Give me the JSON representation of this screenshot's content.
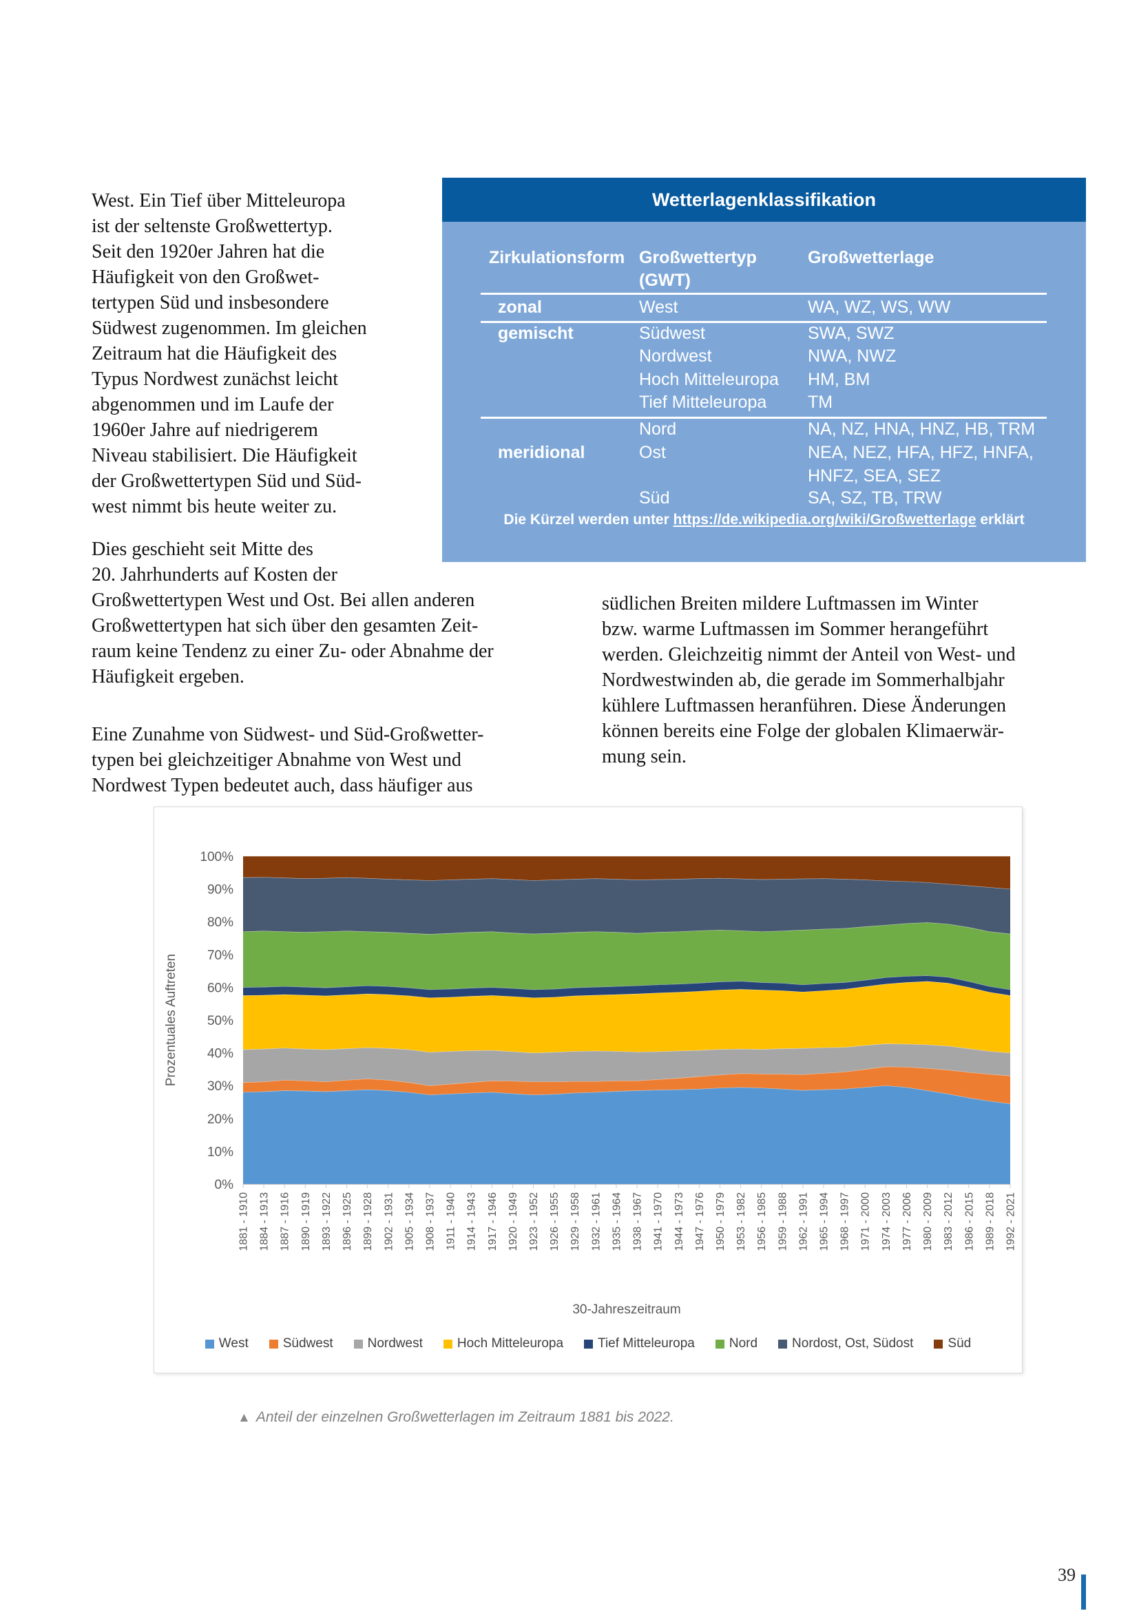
{
  "page": {
    "number": "39"
  },
  "article": {
    "para1_lines": [
      "West. Ein Tief über Mitteleuropa",
      "ist der seltenste Großwettertyp.",
      "Seit den 1920er Jahren hat die",
      "Häufigkeit von den Großwet-",
      "tertypen Süd und insbesondere",
      "Südwest zugenommen. Im gleichen",
      "Zeitraum hat die Häufigkeit des",
      "Typus Nordwest zunächst leicht",
      "abgenommen und im Laufe der",
      "1960er Jahre auf niedrigerem",
      "Niveau stabilisiert. Die Häufigkeit",
      "der Großwettertypen Süd und Süd-",
      "west nimmt bis heute weiter zu."
    ],
    "para2_lines": [
      "Dies geschieht seit Mitte des",
      "20. Jahrhunderts auf Kosten der",
      "Großwettertypen West und Ost. Bei allen anderen",
      "Großwettertypen hat sich über den gesamten Zeit-",
      "raum keine Tendenz zu einer Zu- oder Abnahme der",
      "Häufigkeit ergeben."
    ],
    "para3_lines": [
      "Eine Zunahme von Südwest- und Süd-Großwetter-",
      "typen bei gleichzeitiger Abnahme von West und",
      "Nordwest Typen bedeutet auch, dass häufiger aus"
    ],
    "col2_lines": [
      "südlichen Breiten mildere Luftmassen im Winter",
      "bzw. warme Luftmassen im Sommer herangeführt",
      "werden. Gleichzeitig nimmt der Anteil von West- und",
      "Nordwestwinden ab, die gerade im Sommerhalbjahr",
      "kühlere Luftmassen heranführen. Diese Änderungen",
      "können bereits eine Folge der globalen Klimaerwär-",
      "mung sein."
    ]
  },
  "classification_table": {
    "title": "Wetterlagenklassifikation",
    "colors": {
      "header_bg": "#085a9e",
      "body_bg": "#7ea7d8",
      "text": "#ffffff"
    },
    "col_headers": {
      "c1": "Zirkulationsform",
      "c2_line1": "Großwettertyp",
      "c2_line2": "(GWT)",
      "c3": "Großwetterlage"
    },
    "groups": [
      {
        "zirkulationsform": "zonal",
        "label_row": 0,
        "rows": [
          {
            "gwt": "West",
            "gwl_lines": [
              "WA, WZ, WS, WW"
            ]
          }
        ]
      },
      {
        "zirkulationsform": "gemischt",
        "label_row": 0,
        "rows": [
          {
            "gwt": "Südwest",
            "gwl_lines": [
              "SWA, SWZ"
            ]
          },
          {
            "gwt": "Nordwest",
            "gwl_lines": [
              "NWA, NWZ"
            ]
          },
          {
            "gwt": "Hoch Mitteleuropa",
            "gwl_lines": [
              "HM, BM"
            ]
          },
          {
            "gwt": "Tief Mitteleuropa",
            "gwl_lines": [
              "TM"
            ]
          }
        ]
      },
      {
        "zirkulationsform": "meridional",
        "label_row": 1,
        "rows": [
          {
            "gwt": "Nord",
            "gwl_lines": [
              "NA, NZ, HNA, HNZ, HB, TRM"
            ]
          },
          {
            "gwt": "Ost",
            "gwl_lines": [
              "NEA, NEZ, HFA, HFZ, HNFA,",
              "HNFZ, SEA, SEZ"
            ]
          },
          {
            "gwt": "Süd",
            "gwl_lines": [
              "SA, SZ, TB, TRW"
            ]
          }
        ]
      }
    ],
    "footnote_prefix": "Die Kürzel werden unter ",
    "footnote_link": "https://de.wikipedia.org/wiki/Großwetterlage",
    "footnote_suffix": " erklärt"
  },
  "figure": {
    "caption_marker": "▲",
    "caption": "Anteil der einzelnen Großwetterlagen im Zeitraum 1881 bis 2022."
  },
  "chart_data": {
    "type": "area",
    "stacked": true,
    "stacking": "percent",
    "title": "",
    "xlabel": "30-Jahreszeitraum",
    "ylabel": "Prozentuales Auftreten",
    "ylim": [
      0,
      100
    ],
    "yticks": [
      "0%",
      "10%",
      "20%",
      "30%",
      "40%",
      "50%",
      "60%",
      "70%",
      "80%",
      "90%",
      "100%"
    ],
    "grid": false,
    "legend_position": "bottom",
    "categories": [
      "1881 - 1910",
      "1884 - 1913",
      "1887 - 1916",
      "1890 - 1919",
      "1893 - 1922",
      "1896 - 1925",
      "1899 - 1928",
      "1902 - 1931",
      "1905 - 1934",
      "1908 - 1937",
      "1911 - 1940",
      "1914 - 1943",
      "1917 - 1946",
      "1920 - 1949",
      "1923 - 1952",
      "1926 - 1955",
      "1929 - 1958",
      "1932 - 1961",
      "1935 - 1964",
      "1938 - 1967",
      "1941 - 1970",
      "1944 - 1973",
      "1947 - 1976",
      "1950 - 1979",
      "1953 - 1982",
      "1956 - 1985",
      "1959 - 1988",
      "1962 - 1991",
      "1965 - 1994",
      "1968 - 1997",
      "1971 - 2000",
      "1974 - 2003",
      "1977 - 2006",
      "1980 - 2009",
      "1983 - 2012",
      "1986 - 2015",
      "1989 - 2018",
      "1992 - 2021"
    ],
    "series": [
      {
        "name": "West",
        "color": "#5696d2",
        "values": [
          28.0,
          28.2,
          28.5,
          28.4,
          28.2,
          28.5,
          28.8,
          28.5,
          28.0,
          27.2,
          27.5,
          27.8,
          28.0,
          27.6,
          27.2,
          27.4,
          27.8,
          28.0,
          28.3,
          28.5,
          28.7,
          28.8,
          29.0,
          29.3,
          29.5,
          29.3,
          29.0,
          28.6,
          28.8,
          29.0,
          29.5,
          30.0,
          29.5,
          28.5,
          27.5,
          26.3,
          25.3,
          24.5
        ]
      },
      {
        "name": "Südwest",
        "color": "#ed7d31",
        "values": [
          3.0,
          3.0,
          3.2,
          3.1,
          3.0,
          3.2,
          3.3,
          3.2,
          3.0,
          2.8,
          3.0,
          3.2,
          3.5,
          3.8,
          4.0,
          3.8,
          3.5,
          3.3,
          3.2,
          3.0,
          3.2,
          3.5,
          3.8,
          4.0,
          4.2,
          4.3,
          4.5,
          4.8,
          5.0,
          5.2,
          5.5,
          5.8,
          6.2,
          6.8,
          7.3,
          7.8,
          8.2,
          8.5
        ]
      },
      {
        "name": "Nordwest",
        "color": "#a6a6a6",
        "values": [
          10.0,
          10.0,
          9.8,
          9.7,
          9.8,
          9.6,
          9.5,
          9.7,
          10.0,
          10.2,
          10.0,
          9.7,
          9.3,
          9.0,
          8.8,
          9.0,
          9.2,
          9.3,
          9.0,
          8.8,
          8.5,
          8.3,
          8.0,
          7.8,
          7.5,
          7.5,
          7.8,
          8.0,
          7.8,
          7.5,
          7.3,
          7.0,
          7.0,
          7.2,
          7.3,
          7.2,
          7.0,
          7.0
        ]
      },
      {
        "name": "Hoch Mitteleuropa",
        "color": "#ffc000",
        "values": [
          16.5,
          16.4,
          16.3,
          16.4,
          16.4,
          16.4,
          16.4,
          16.4,
          16.4,
          16.6,
          16.5,
          16.6,
          16.7,
          16.8,
          16.8,
          16.8,
          16.9,
          17.0,
          17.3,
          17.7,
          17.9,
          17.9,
          18.0,
          18.1,
          18.2,
          18.1,
          17.7,
          17.2,
          17.4,
          17.7,
          17.9,
          18.2,
          18.8,
          19.3,
          19.2,
          18.7,
          18.0,
          17.5
        ]
      },
      {
        "name": "Tief Mitteleuropa",
        "color": "#264478",
        "values": [
          2.5,
          2.5,
          2.5,
          2.5,
          2.5,
          2.5,
          2.5,
          2.5,
          2.5,
          2.5,
          2.5,
          2.5,
          2.5,
          2.5,
          2.5,
          2.5,
          2.5,
          2.5,
          2.5,
          2.5,
          2.5,
          2.5,
          2.5,
          2.5,
          2.5,
          2.3,
          2.3,
          2.2,
          2.2,
          2.1,
          2.0,
          2.0,
          1.9,
          1.8,
          1.8,
          1.8,
          1.8,
          1.8
        ]
      },
      {
        "name": "Nord",
        "color": "#70ad47",
        "values": [
          17.0,
          17.1,
          16.7,
          16.7,
          17.1,
          17.0,
          16.5,
          16.5,
          16.6,
          16.9,
          17.0,
          17.0,
          17.0,
          16.9,
          17.0,
          17.0,
          16.9,
          16.9,
          16.5,
          16.0,
          16.0,
          16.0,
          16.0,
          15.8,
          15.4,
          15.5,
          15.9,
          16.7,
          16.6,
          16.5,
          16.3,
          16.0,
          16.1,
          16.2,
          16.2,
          16.5,
          16.7,
          17.0
        ]
      },
      {
        "name": "Nordost, Ost, Südost",
        "color": "#485972",
        "values": [
          16.5,
          16.4,
          16.4,
          16.4,
          16.3,
          16.3,
          16.3,
          16.2,
          16.3,
          16.4,
          16.3,
          16.2,
          16.2,
          16.3,
          16.3,
          16.3,
          16.2,
          16.2,
          16.2,
          16.3,
          16.1,
          16.0,
          15.9,
          15.8,
          15.8,
          15.9,
          15.8,
          15.6,
          15.4,
          15.0,
          14.3,
          13.5,
          12.8,
          12.2,
          12.2,
          12.7,
          13.5,
          13.7
        ]
      },
      {
        "name": "Süd",
        "color": "#843c0c",
        "values": [
          6.5,
          6.4,
          6.6,
          6.8,
          6.7,
          6.5,
          6.7,
          7.0,
          7.2,
          7.4,
          7.2,
          7.0,
          6.8,
          7.1,
          7.4,
          7.2,
          7.0,
          6.8,
          7.0,
          7.2,
          7.1,
          7.0,
          6.8,
          6.7,
          6.9,
          7.1,
          7.0,
          6.9,
          6.8,
          7.0,
          7.2,
          7.5,
          7.7,
          8.0,
          8.5,
          9.0,
          9.5,
          10.0
        ]
      }
    ]
  }
}
